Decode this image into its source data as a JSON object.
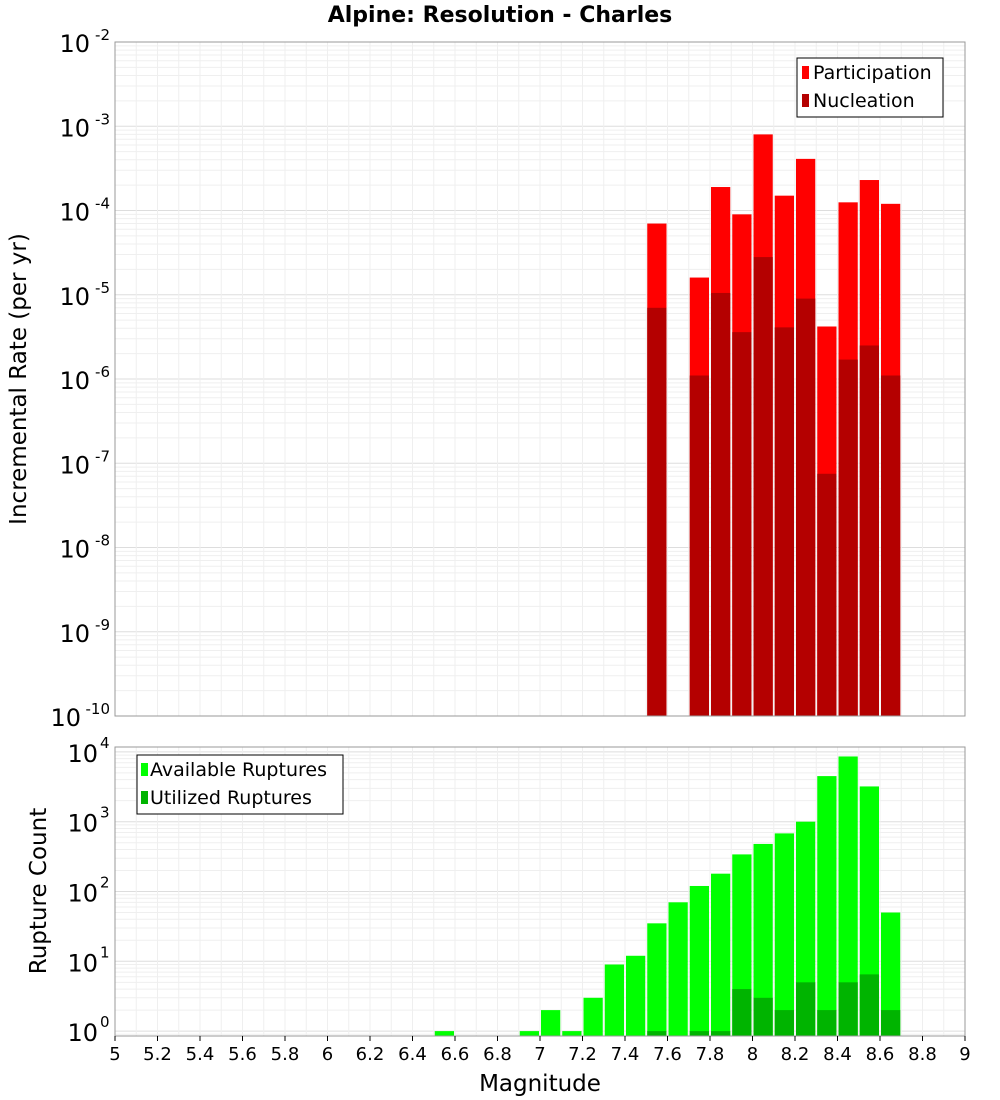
{
  "chart_data": [
    {
      "type": "bar",
      "title": "Alpine: Resolution - Charles",
      "ylabel": "Incremental Rate (per yr)",
      "yscale": "log",
      "ylim_exp": [
        -10,
        -2
      ],
      "xlim": [
        5,
        9
      ],
      "grid": true,
      "legend_position": "top-right",
      "series": [
        {
          "name": "Participation",
          "color": "#ff0000",
          "x": [
            7.55,
            7.75,
            7.85,
            7.95,
            8.05,
            8.15,
            8.25,
            8.35,
            8.45,
            8.55,
            8.65
          ],
          "values": [
            7e-05,
            1.6e-05,
            0.00019,
            9e-05,
            0.0008,
            0.00015,
            0.00041,
            4.2e-06,
            0.000125,
            0.00023,
            0.00012
          ]
        },
        {
          "name": "Nucleation",
          "color": "#b40000",
          "x": [
            7.55,
            7.75,
            7.85,
            7.95,
            8.05,
            8.15,
            8.25,
            8.35,
            8.45,
            8.55,
            8.65
          ],
          "values": [
            7e-06,
            1.1e-06,
            1.05e-05,
            3.6e-06,
            2.8e-05,
            4.1e-06,
            9e-06,
            7.5e-08,
            1.7e-06,
            2.5e-06,
            1.1e-06
          ]
        }
      ]
    },
    {
      "type": "bar",
      "ylabel": "Rupture Count",
      "xlabel": "Magnitude",
      "yscale": "log",
      "ylim_exp": [
        -0.07,
        4.07
      ],
      "xlim": [
        5,
        9
      ],
      "xticks": [
        "5",
        "5.2",
        "5.4",
        "5.6",
        "5.8",
        "6",
        "6.2",
        "6.4",
        "6.6",
        "6.8",
        "7",
        "7.2",
        "7.4",
        "7.6",
        "7.8",
        "8",
        "8.2",
        "8.4",
        "8.6",
        "8.8",
        "9"
      ],
      "grid": true,
      "legend_position": "top-left",
      "series": [
        {
          "name": "Available Ruptures",
          "color": "#00ff00",
          "x": [
            6.55,
            6.95,
            7.05,
            7.15,
            7.25,
            7.35,
            7.45,
            7.55,
            7.65,
            7.75,
            7.85,
            7.95,
            8.05,
            8.15,
            8.25,
            8.35,
            8.45,
            8.55,
            8.65
          ],
          "values": [
            1,
            1,
            2,
            1,
            3,
            9,
            12,
            35,
            70,
            120,
            180,
            340,
            480,
            680,
            1000,
            4500,
            8600,
            3200,
            50
          ]
        },
        {
          "name": "Utilized Ruptures",
          "color": "#00b400",
          "x": [
            7.55,
            7.75,
            7.85,
            7.95,
            8.05,
            8.15,
            8.25,
            8.35,
            8.45,
            8.55,
            8.65
          ],
          "values": [
            1,
            1,
            1,
            4,
            3,
            2,
            5,
            2,
            5,
            6.5,
            2
          ]
        }
      ]
    }
  ]
}
